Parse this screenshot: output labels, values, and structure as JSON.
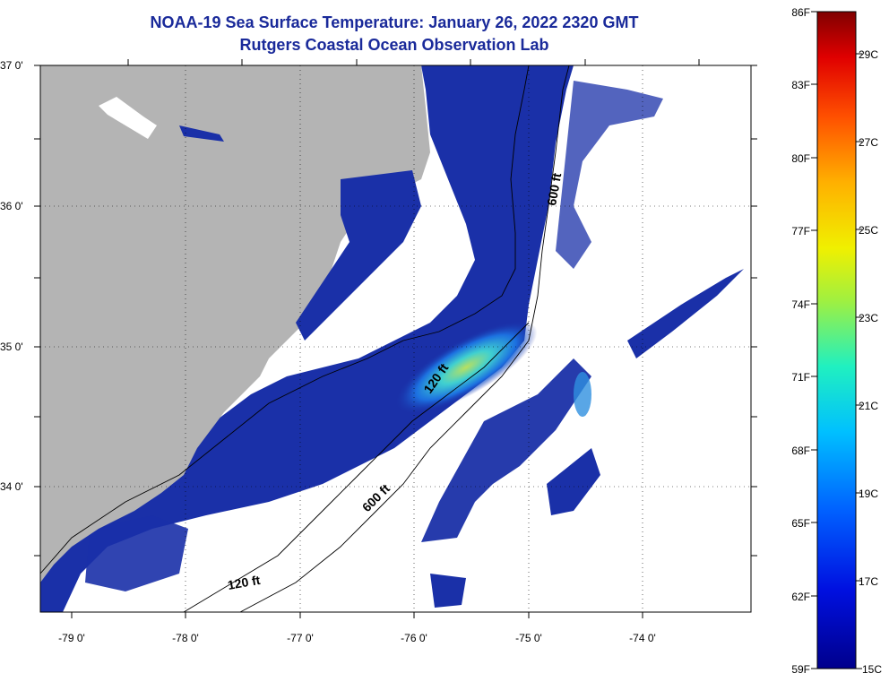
{
  "header": {
    "title": "NOAA-19 Sea Surface Temperature:  January 26, 2022 2320 GMT",
    "subtitle": "Rutgers Coastal Ocean Observation Lab"
  },
  "axes": {
    "lat_labels": [
      "37 0'",
      "36 0'",
      "35 0'",
      "34 0'"
    ],
    "lon_labels": [
      "-79 0'",
      "-78 0'",
      "-77 0'",
      "-76 0'",
      "-75 0'",
      "-74 0'"
    ]
  },
  "isobaths": {
    "shelf_label": "120 ft",
    "shelf_label_2": "120 ft",
    "slope_label": "600 ft",
    "slope_label_2": "600 ft"
  },
  "colorbar": {
    "fahrenheit": [
      "86F",
      "83F",
      "80F",
      "77F",
      "74F",
      "71F",
      "68F",
      "65F",
      "62F",
      "59F"
    ],
    "celsius": [
      "29C",
      "27C",
      "25C",
      "23C",
      "21C",
      "19C",
      "17C",
      "15C"
    ]
  },
  "colors": {
    "land": "#b4b4b4",
    "ocean_cold": "#1a30a8",
    "cloud_free_missing": "#ffffff",
    "title": "#1a2a9a"
  }
}
